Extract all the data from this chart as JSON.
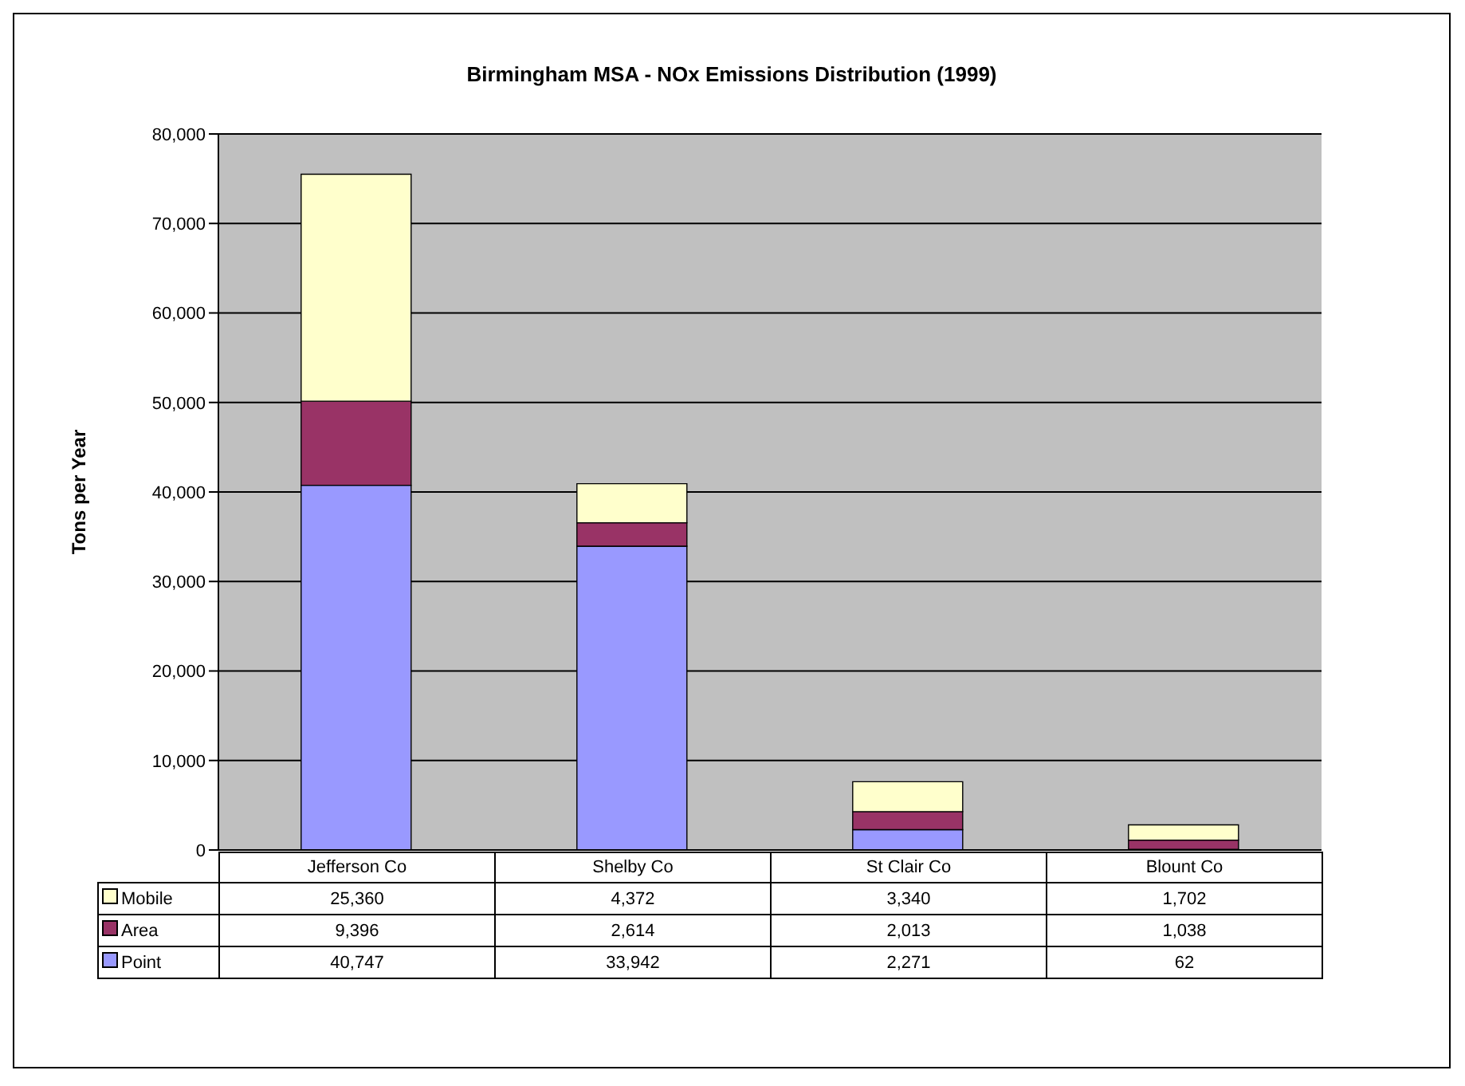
{
  "chart_data": {
    "type": "bar",
    "title": "Birmingham MSA - NOx Emissions Distribution (1999)",
    "ylabel": "Tons per Year",
    "categories": [
      "Jefferson Co",
      "Shelby Co",
      "St Clair Co",
      "Blount Co"
    ],
    "stacked": true,
    "series": [
      {
        "name": "Point",
        "color": "#9999ff",
        "values": [
          40747,
          33942,
          2271,
          62
        ],
        "value_labels": [
          "40,747",
          "33,942",
          "2,271",
          "62"
        ]
      },
      {
        "name": "Area",
        "color": "#993366",
        "values": [
          9396,
          2614,
          2013,
          1038
        ],
        "value_labels": [
          "9,396",
          "2,614",
          "2,013",
          "1,038"
        ]
      },
      {
        "name": "Mobile",
        "color": "#ffffcc",
        "values": [
          25360,
          4372,
          3340,
          1702
        ],
        "value_labels": [
          "25,360",
          "4,372",
          "3,340",
          "1,702"
        ]
      }
    ],
    "ylim": [
      0,
      80000
    ],
    "yticks": [
      0,
      {
        "value": 10000,
        "label": "10,000"
      },
      {
        "value": 20000,
        "label": "20,000"
      },
      {
        "value": 30000,
        "label": "30,000"
      },
      {
        "value": 40000,
        "label": "40,000"
      },
      {
        "value": 50000,
        "label": "50,000"
      },
      {
        "value": 60000,
        "label": "60,000"
      },
      {
        "value": 70000,
        "label": "70,000"
      },
      {
        "value": 80000,
        "label": "80,000"
      }
    ],
    "grid": "y",
    "legend": "bottom left"
  }
}
